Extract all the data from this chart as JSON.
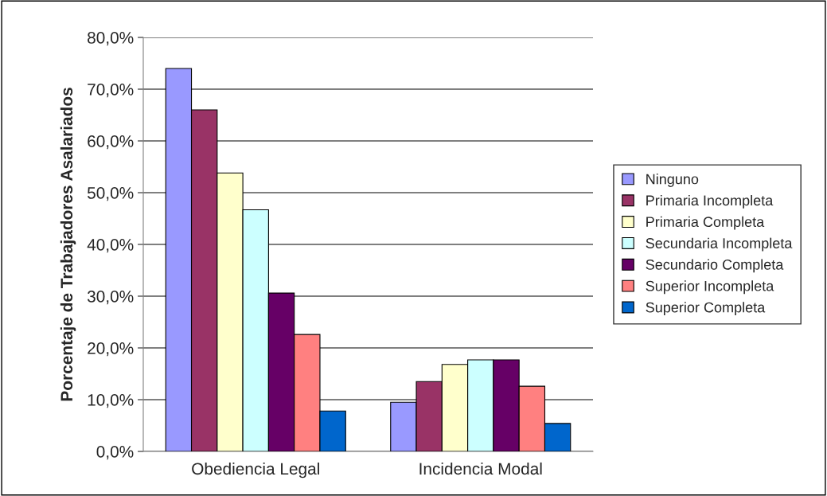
{
  "chart_data": {
    "type": "bar",
    "ylabel": "Porcentaje de Trabajadores Asalariados",
    "categories": [
      "Obediencia Legal",
      "Incidencia Modal"
    ],
    "series": [
      {
        "name": "Ninguno",
        "color": "#9999ff",
        "values": [
          74.0,
          9.5
        ]
      },
      {
        "name": "Primaria Incompleta",
        "color": "#993366",
        "values": [
          66.0,
          13.5
        ]
      },
      {
        "name": "Primaria Completa",
        "color": "#ffffcc",
        "values": [
          53.8,
          16.8
        ]
      },
      {
        "name": "Secundaria Incompleta",
        "color": "#ccffff",
        "values": [
          46.7,
          17.7
        ]
      },
      {
        "name": "Secundario Completa",
        "color": "#660066",
        "values": [
          30.6,
          17.7
        ]
      },
      {
        "name": "Superior Incompleta",
        "color": "#ff8080",
        "values": [
          22.6,
          12.6
        ]
      },
      {
        "name": "Superior Completa",
        "color": "#0066cc",
        "values": [
          7.8,
          5.4
        ]
      }
    ],
    "ylim": [
      0,
      80
    ],
    "yticks": [
      {
        "value": 0,
        "label": "0,0%"
      },
      {
        "value": 10,
        "label": "10,0%"
      },
      {
        "value": 20,
        "label": "20,0%"
      },
      {
        "value": 30,
        "label": "30,0%"
      },
      {
        "value": 40,
        "label": "40,0%"
      },
      {
        "value": 50,
        "label": "50,0%"
      },
      {
        "value": 60,
        "label": "60,0%"
      },
      {
        "value": 70,
        "label": "70,0%"
      },
      {
        "value": 80,
        "label": "80,0%"
      }
    ],
    "grid": "y",
    "legend": "right"
  }
}
